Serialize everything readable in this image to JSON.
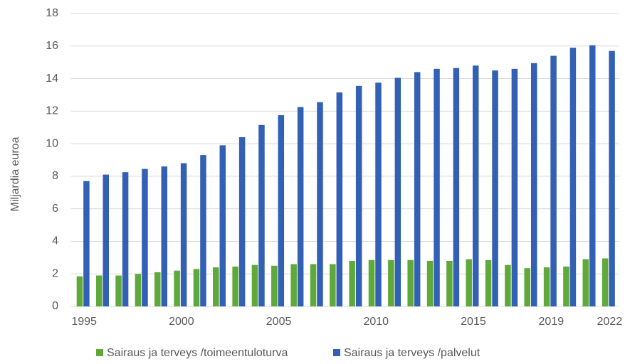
{
  "chart_data": {
    "type": "bar",
    "categories": [
      1995,
      null,
      null,
      null,
      null,
      2000,
      null,
      null,
      null,
      null,
      2005,
      null,
      null,
      null,
      null,
      2010,
      null,
      null,
      null,
      null,
      2015,
      null,
      null,
      null,
      2019,
      null,
      null,
      2022
    ],
    "series": [
      {
        "name": "Sairaus ja terveys /toimeentuloturva",
        "color": "#5fa83a",
        "values": [
          1.85,
          1.9,
          1.9,
          2.0,
          2.1,
          2.2,
          2.3,
          2.4,
          2.45,
          2.55,
          2.5,
          2.6,
          2.6,
          2.6,
          2.8,
          2.85,
          2.85,
          2.85,
          2.8,
          2.8,
          2.9,
          2.85,
          2.55,
          2.35,
          2.4,
          2.45,
          2.9,
          2.95
        ]
      },
      {
        "name": "Sairaus ja terveys /palvelut",
        "color": "#3160b4",
        "values": [
          7.7,
          8.1,
          8.25,
          8.45,
          8.6,
          8.8,
          9.3,
          9.9,
          10.4,
          11.15,
          11.75,
          12.25,
          12.55,
          13.15,
          13.55,
          13.75,
          14.05,
          14.4,
          14.6,
          14.65,
          14.8,
          14.5,
          14.6,
          14.95,
          15.4,
          15.9,
          16.05,
          15.7
        ]
      }
    ],
    "y_label": "Miljardia euroa",
    "ylim": [
      0,
      18
    ],
    "yticks": [
      0,
      2,
      4,
      6,
      8,
      10,
      12,
      14,
      16,
      18
    ],
    "grid": true,
    "legend": "bottom"
  }
}
